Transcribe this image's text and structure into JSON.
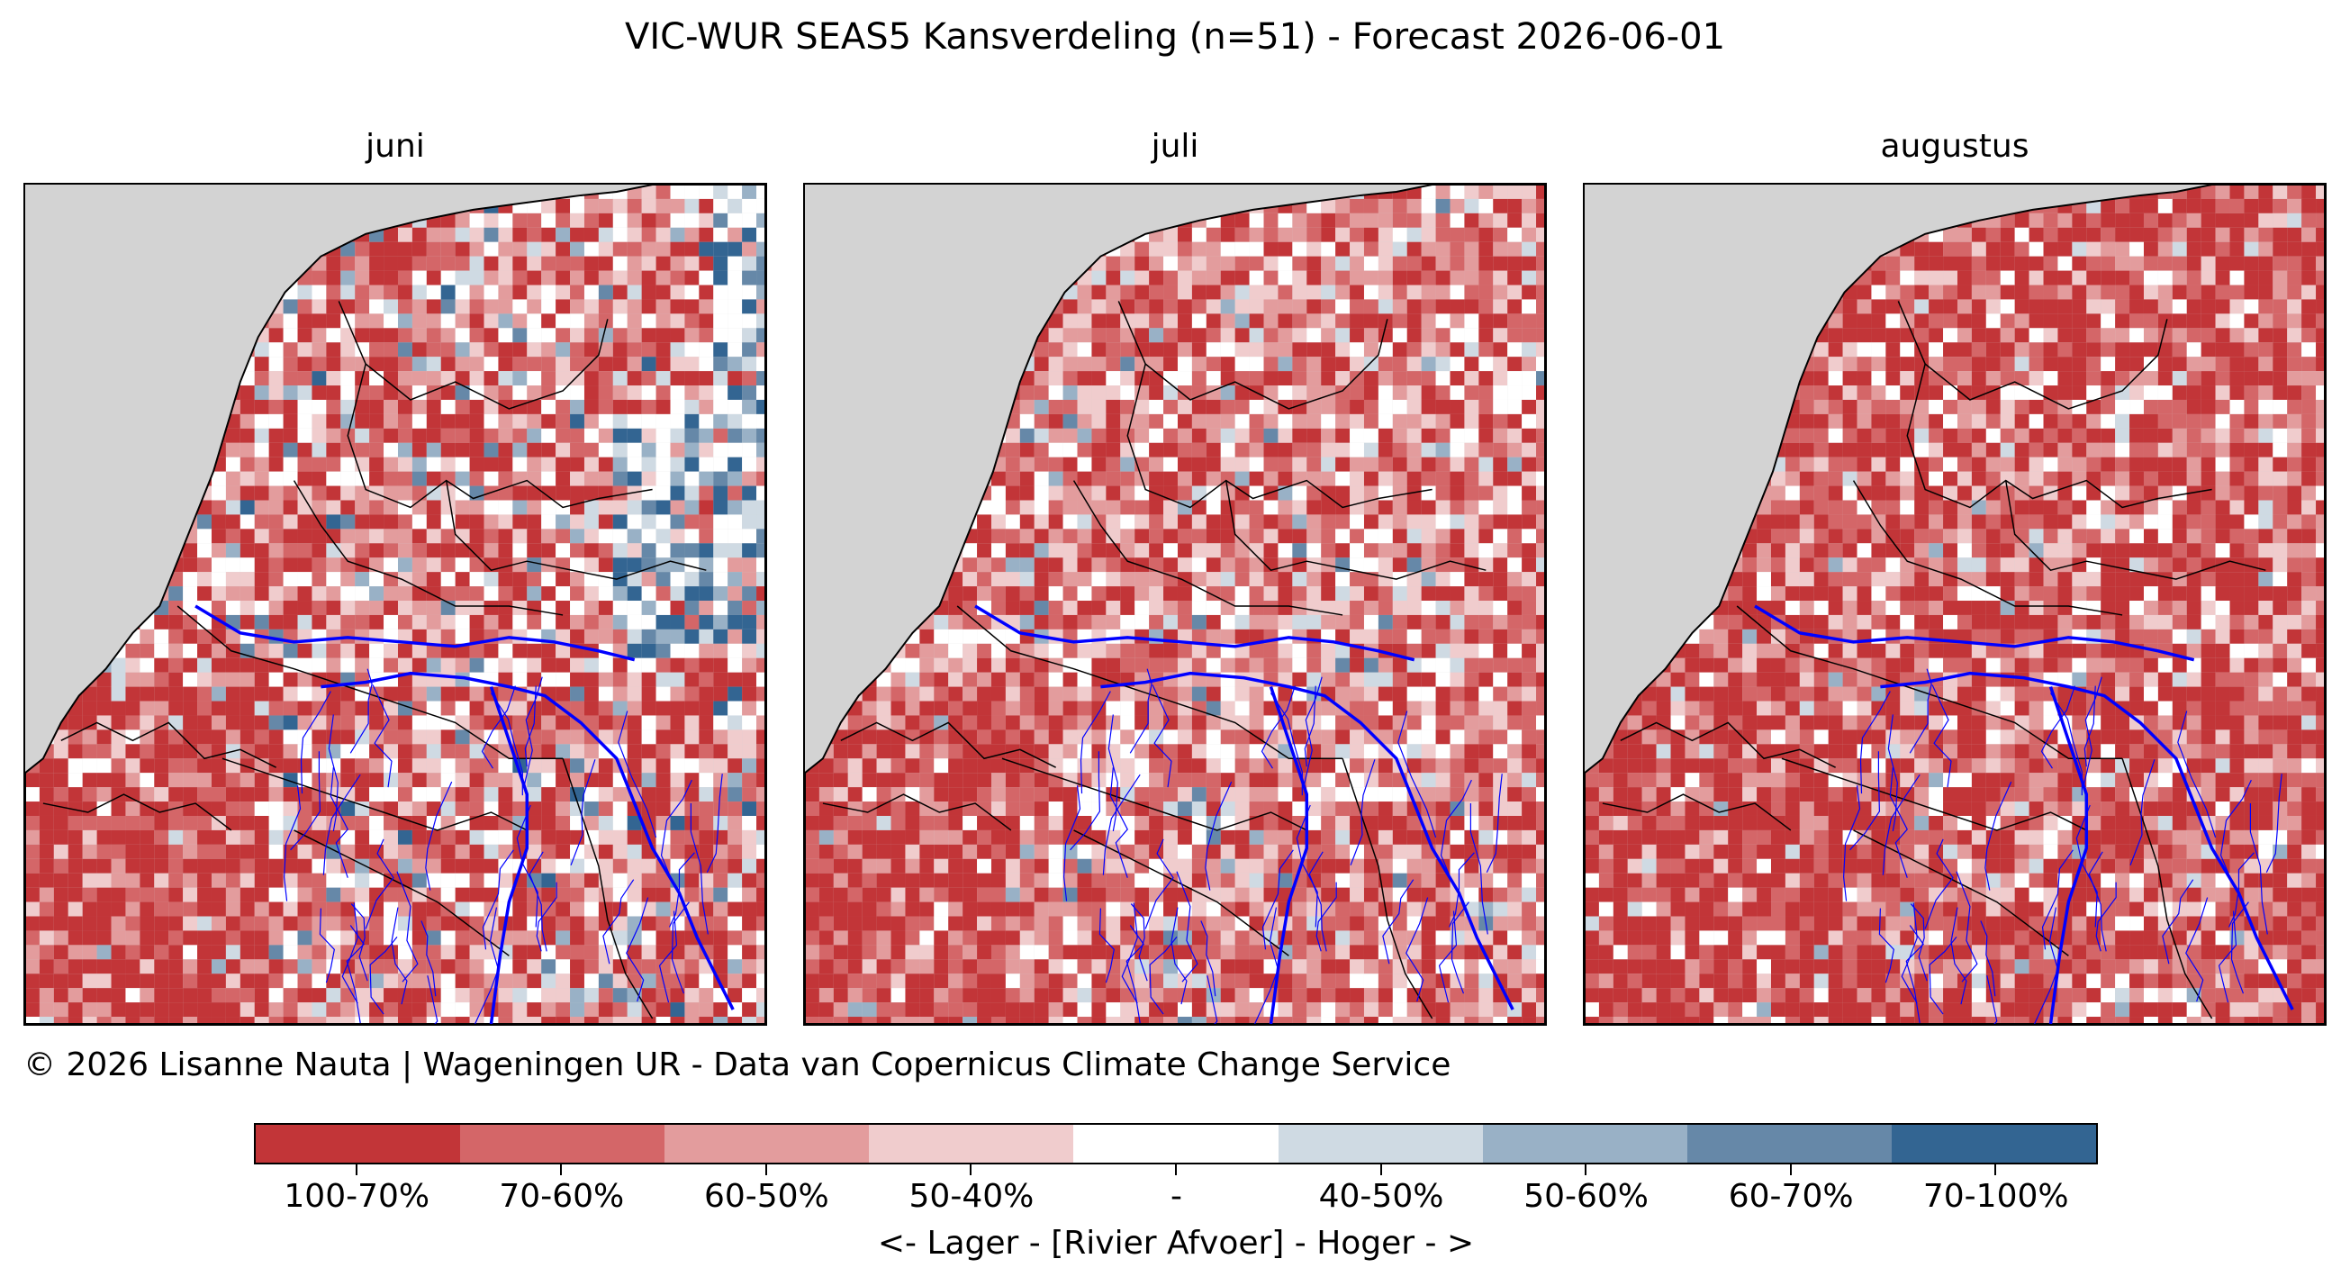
{
  "title": "VIC-WUR SEAS5 Kansverdeling (n=51) - Forecast 2026-06-01",
  "panels": [
    {
      "label": "juni"
    },
    {
      "label": "juli"
    },
    {
      "label": "augustus"
    }
  ],
  "credit": "© 2026 Lisanne Nauta | Wageningen UR - Data van Copernicus Climate Change Service",
  "colorbar": {
    "xlabel": "<- Lager - [Rivier Afvoer] - Hoger - >",
    "categories": [
      "100-70%",
      "70-60%",
      "60-50%",
      "50-40%",
      "-",
      "40-50%",
      "50-60%",
      "60-70%",
      "70-100%"
    ],
    "colors": [
      "#c23538",
      "#d46668",
      "#e39c9d",
      "#f0cccd",
      "#ffffff",
      "#cfdae3",
      "#99b1c6",
      "#6688a8",
      "#336592"
    ]
  },
  "map_colors": {
    "background": "#d3d3d3",
    "rivers": "#0000ff",
    "borders": "#000000"
  }
}
